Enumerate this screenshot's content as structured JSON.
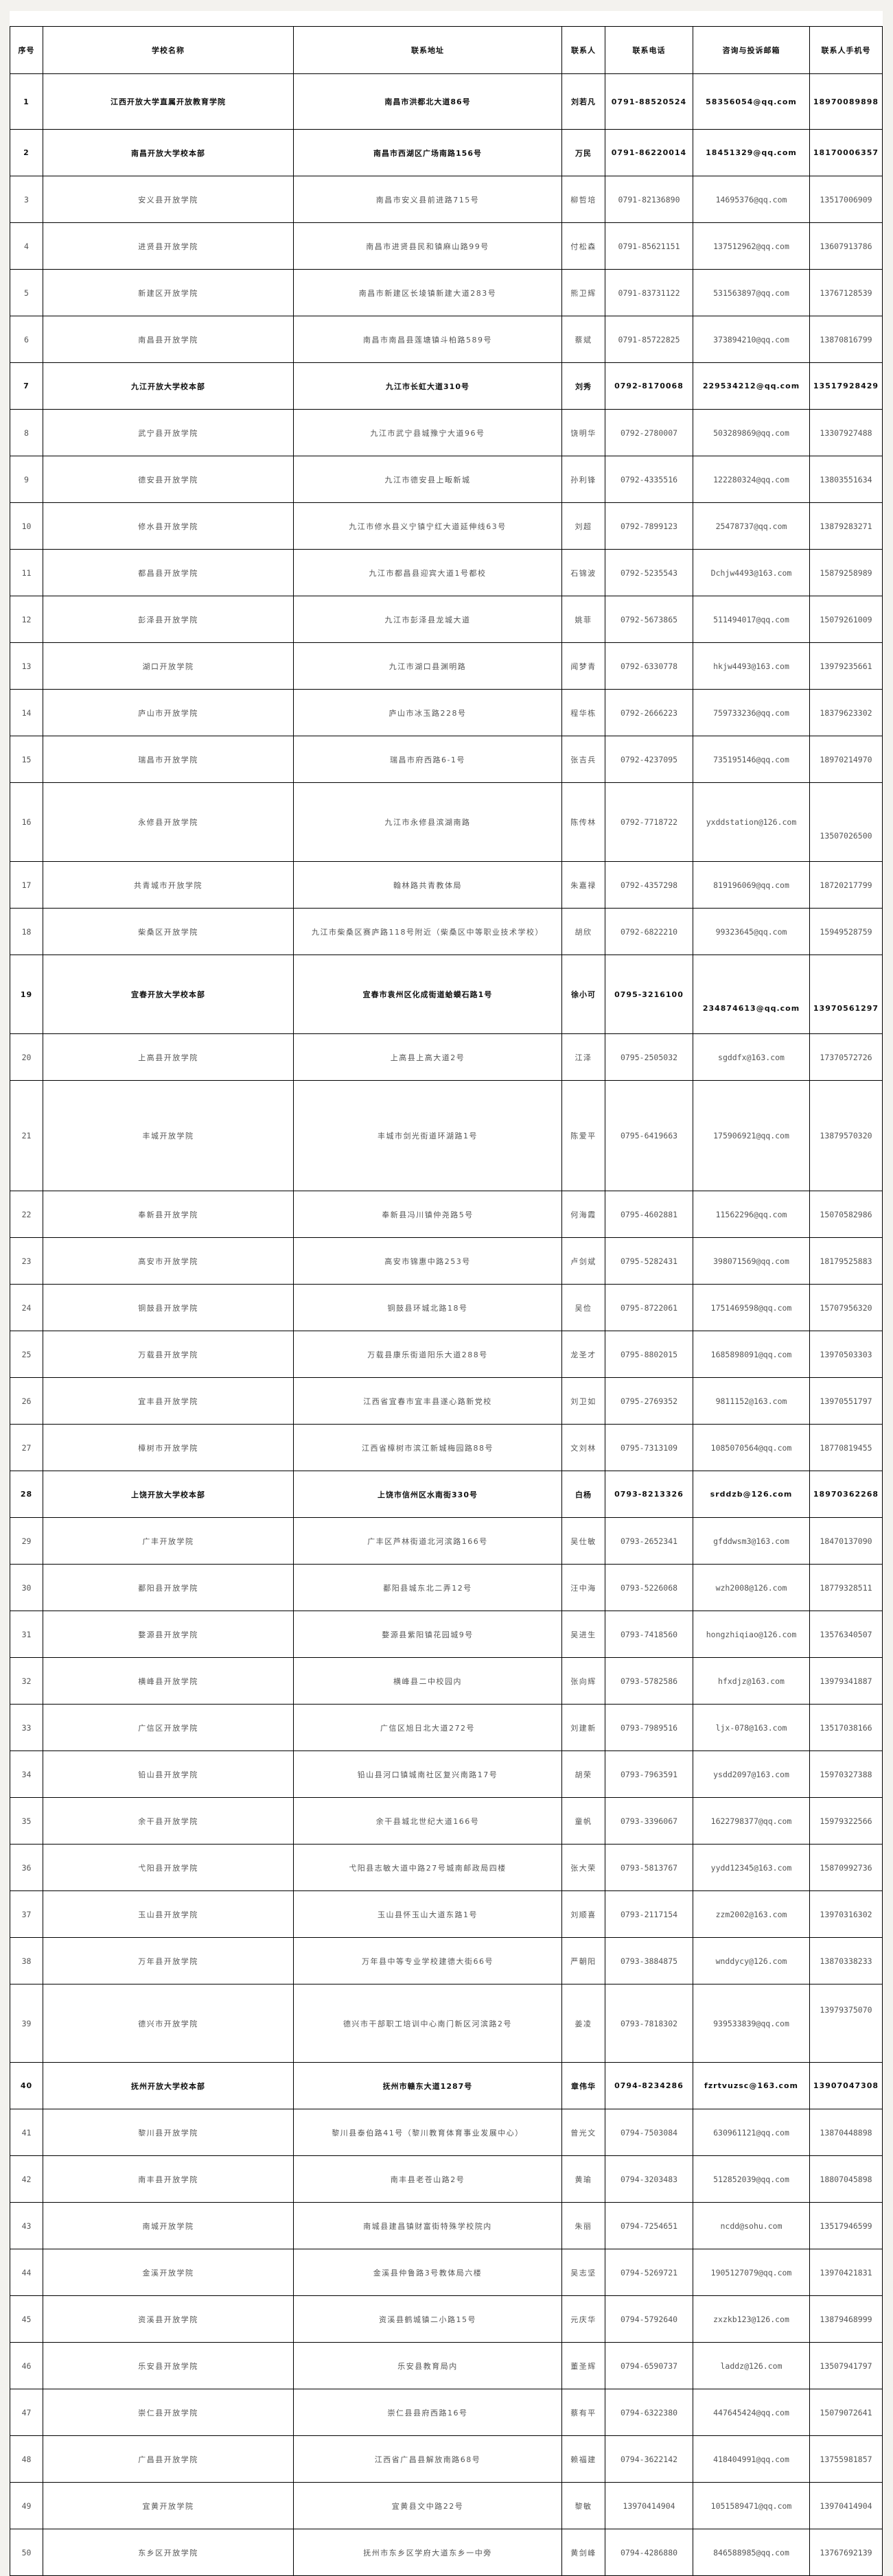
{
  "table": {
    "headers": [
      "序号",
      "学校名称",
      "联系地址",
      "联系人",
      "联系电话",
      "咨询与投诉邮箱",
      "联系人手机号"
    ],
    "rows": [
      {
        "no": "1",
        "school": "江西开放大学直属开放教育学院",
        "address": "南昌市洪都北大道86号",
        "contact": "刘若凡",
        "phone": "0791-88520524",
        "email": "58356054@qq.com",
        "mobile": "18970089898",
        "hq": true
      },
      {
        "no": "2",
        "school": "南昌开放大学校本部",
        "address": "南昌市西湖区广场南路156号",
        "contact": "万民",
        "phone": "0791-86220014",
        "email": "18451329@qq.com",
        "mobile": "18170006357",
        "hq": true
      },
      {
        "no": "3",
        "school": "安义县开放学院",
        "address": "南昌市安义县前进路715号",
        "contact": "柳哲培",
        "phone": "0791-82136890",
        "email": "14695376@qq.com",
        "mobile": "13517006909"
      },
      {
        "no": "4",
        "school": "进贤县开放学院",
        "address": "南昌市进贤县民和镇麻山路99号",
        "contact": "付松森",
        "phone": "0791-85621151",
        "email": "137512962@qq.com",
        "mobile": "13607913786"
      },
      {
        "no": "5",
        "school": "新建区开放学院",
        "address": "南昌市新建区长堎镇新建大道283号",
        "contact": "熊卫辉",
        "phone": "0791-83731122",
        "email": "531563897@qq.com",
        "mobile": "13767128539"
      },
      {
        "no": "6",
        "school": "南昌县开放学院",
        "address": "南昌市南昌县莲塘镇斗柏路589号",
        "contact": "蔡斌",
        "phone": "0791-85722825",
        "email": "373894210@qq.com",
        "mobile": "13870816799"
      },
      {
        "no": "7",
        "school": "九江开放大学校本部",
        "address": "九江市长虹大道310号",
        "contact": "刘秀",
        "phone": "0792-8170068",
        "email": "229534212@qq.com",
        "mobile": "13517928429",
        "hq": true
      },
      {
        "no": "8",
        "school": "武宁县开放学院",
        "address": "九江市武宁县城豫宁大道96号",
        "contact": "饶明华",
        "phone": "0792-2780007",
        "email": "503289869@qq.com",
        "mobile": "13307927488"
      },
      {
        "no": "9",
        "school": "德安县开放学院",
        "address": "九江市德安县上畈新城",
        "contact": "孙利锋",
        "phone": "0792-4335516",
        "email": "122280324@qq.com",
        "mobile": "13803551634"
      },
      {
        "no": "10",
        "school": "修水县开放学院",
        "address": "九江市修水县义宁镇宁红大道延伸线63号",
        "contact": "刘超",
        "phone": "0792-7899123",
        "email": "25478737@qq.com",
        "mobile": "13879283271"
      },
      {
        "no": "11",
        "school": "都昌县开放学院",
        "address": "九江市都昌县迎宾大道1号都校",
        "contact": "石锦波",
        "phone": "0792-5235543",
        "email": "Dchjw4493@163.com",
        "mobile": "15879258989"
      },
      {
        "no": "12",
        "school": "彭泽县开放学院",
        "address": "九江市彭泽县龙城大道",
        "contact": "姚菲",
        "phone": "0792-5673865",
        "email": "511494017@qq.com",
        "mobile": "15079261009"
      },
      {
        "no": "13",
        "school": "湖口开放学院",
        "address": "九江市湖口县渊明路",
        "contact": "闻梦青",
        "phone": "0792-6330778",
        "email": "hkjw4493@163.com",
        "mobile": "13979235661"
      },
      {
        "no": "14",
        "school": "庐山市开放学院",
        "address": "庐山市冰玉路228号",
        "contact": "程华栋",
        "phone": "0792-2666223",
        "email": "759733236@qq.com",
        "mobile": "18379623302"
      },
      {
        "no": "15",
        "school": "瑞昌市开放学院",
        "address": "瑞昌市府西路6-1号",
        "contact": "张吉兵",
        "phone": "0792-4237095",
        "email": "735195146@qq.com",
        "mobile": "18970214970"
      },
      {
        "no": "16",
        "school": "永修县开放学院",
        "address": "九江市永修县滨湖南路",
        "contact": "陈传林",
        "phone": "0792-7718722",
        "email": "yxddstation@126.com",
        "mobile": "13507026500"
      },
      {
        "no": "17",
        "school": "共青城市开放学院",
        "address": "翰林路共青教体局",
        "contact": "朱嘉禄",
        "phone": "0792-4357298",
        "email": "819196069@qq.com",
        "mobile": "18720217799"
      },
      {
        "no": "18",
        "school": "柴桑区开放学院",
        "address": "九江市柴桑区赛庐路118号附近（柴桑区中等职业技术学校）",
        "contact": "胡欣",
        "phone": "0792-6822210",
        "email": "99323645@qq.com",
        "mobile": "15949528759"
      },
      {
        "no": "19",
        "school": "宜春开放大学校本部",
        "address": "宜春市袁州区化成街道蛤蟆石路1号",
        "contact": "徐小可",
        "phone": "0795-3216100",
        "email": "234874613@qq.com",
        "mobile": "13970561297",
        "hq": true
      },
      {
        "no": "20",
        "school": "上高县开放学院",
        "address": "上高县上高大道2号",
        "contact": "江泽",
        "phone": "0795-2505032",
        "email": "sgddfx@163.com",
        "mobile": "17370572726"
      },
      {
        "no": "21",
        "school": "丰城开放学院",
        "address": "丰城市剑光街道环湖路1号",
        "contact": "陈爱平",
        "phone": "0795-6419663",
        "email": "175906921@qq.com",
        "mobile": "13879570320"
      },
      {
        "no": "22",
        "school": "奉新县开放学院",
        "address": "奉新县冯川镇仲尧路5号",
        "contact": "何海霞",
        "phone": "0795-4602881",
        "email": "11562296@qq.com",
        "mobile": "15070582986"
      },
      {
        "no": "23",
        "school": "高安市开放学院",
        "address": "高安市锦惠中路253号",
        "contact": "卢剑斌",
        "phone": "0795-5282431",
        "email": "398071569@qq.com",
        "mobile": "18179525883"
      },
      {
        "no": "24",
        "school": "铜鼓县开放学院",
        "address": "铜鼓县环城北路18号",
        "contact": "吴俭",
        "phone": "0795-8722061",
        "email": "1751469598@qq.com",
        "mobile": "15707956320"
      },
      {
        "no": "25",
        "school": "万载县开放学院",
        "address": "万载县康乐街道阳乐大道288号",
        "contact": "龙圣才",
        "phone": "0795-8802015",
        "email": "1685898091@qq.com",
        "mobile": "13970503303"
      },
      {
        "no": "26",
        "school": "宜丰县开放学院",
        "address": "江西省宜春市宜丰县遂心路新党校",
        "contact": "刘卫如",
        "phone": "0795-2769352",
        "email": "9811152@163.com",
        "mobile": "13970551797"
      },
      {
        "no": "27",
        "school": "樟树市开放学院",
        "address": "江西省樟树市滨江新城梅园路88号",
        "contact": "文刘林",
        "phone": "0795-7313109",
        "email": "1085070564@qq.com",
        "mobile": "18770819455"
      },
      {
        "no": "28",
        "school": "上饶开放大学校本部",
        "address": "上饶市信州区水南街330号",
        "contact": "白杨",
        "phone": "0793-8213326",
        "email": "srddzb@126.com",
        "mobile": "18970362268",
        "hq": true
      },
      {
        "no": "29",
        "school": "广丰开放学院",
        "address": "广丰区芦林街道北河滨路166号",
        "contact": "吴仕敏",
        "phone": "0793-2652341",
        "email": "gfddwsm3@163.com",
        "mobile": "18470137090"
      },
      {
        "no": "30",
        "school": "鄱阳县开放学院",
        "address": "鄱阳县城东北二弄12号",
        "contact": "汪中海",
        "phone": "0793-5226068",
        "email": "wzh2008@126.com",
        "mobile": "18779328511"
      },
      {
        "no": "31",
        "school": "婺源县开放学院",
        "address": "婺源县紫阳镇花园城9号",
        "contact": "吴进生",
        "phone": "0793-7418560",
        "email": "hongzhiqiao@126.com",
        "mobile": "13576340507"
      },
      {
        "no": "32",
        "school": "横峰县开放学院",
        "address": "横峰县二中校园内",
        "contact": "张向辉",
        "phone": "0793-5782586",
        "email": "hfxdjz@163.com",
        "mobile": "13979341887"
      },
      {
        "no": "33",
        "school": "广信区开放学院",
        "address": "广信区旭日北大道272号",
        "contact": "刘建新",
        "phone": "0793-7989516",
        "email": "ljx-078@163.com",
        "mobile": "13517038166"
      },
      {
        "no": "34",
        "school": "铅山县开放学院",
        "address": "铅山县河口镇城南社区复兴南路17号",
        "contact": "胡荣",
        "phone": "0793-7963591",
        "email": "ysdd2097@163.com",
        "mobile": "15970327388"
      },
      {
        "no": "35",
        "school": "余干县开放学院",
        "address": "余干县城北世纪大道166号",
        "contact": "童帆",
        "phone": "0793-3396067",
        "email": "1622798377@qq.com",
        "mobile": "15979322566"
      },
      {
        "no": "36",
        "school": "弋阳县开放学院",
        "address": "弋阳县志敏大道中路27号城南邮政局四楼",
        "contact": "张大荣",
        "phone": "0793-5813767",
        "email": "yydd12345@163.com",
        "mobile": "15870992736"
      },
      {
        "no": "37",
        "school": "玉山县开放学院",
        "address": "玉山县怀玉山大道东路1号",
        "contact": "刘顺喜",
        "phone": "0793-2117154",
        "email": "zzm2002@163.com",
        "mobile": "13970316302"
      },
      {
        "no": "38",
        "school": "万年县开放学院",
        "address": "万年县中等专业学校建德大街66号",
        "contact": "严朝阳",
        "phone": "0793-3884875",
        "email": "wnddycy@126.com",
        "mobile": "13870338233"
      },
      {
        "no": "39",
        "school": "德兴市开放学院",
        "address": "德兴市干部职工培训中心南门新区河滨路2号",
        "contact": "姜凌",
        "phone": "0793-7818302",
        "email": "939533839@qq.com",
        "mobile": "13979375070"
      },
      {
        "no": "40",
        "school": "抚州开放大学校本部",
        "address": "抚州市赣东大道1287号",
        "contact": "章伟华",
        "phone": "0794-8234286",
        "email": "fzrtvuzsc@163.com",
        "mobile": "13907047308",
        "hq": true
      },
      {
        "no": "41",
        "school": "黎川县开放学院",
        "address": "黎川县泰伯路41号（黎川教育体育事业发展中心）",
        "contact": "曾光文",
        "phone": "0794-7503084",
        "email": "630961121@qq.com",
        "mobile": "13870448898"
      },
      {
        "no": "42",
        "school": "南丰县开放学院",
        "address": "南丰县老苍山路2号",
        "contact": "黄瑜",
        "phone": "0794-3203483",
        "email": "512852039@qq.com",
        "mobile": "18807045898"
      },
      {
        "no": "43",
        "school": "南城开放学院",
        "address": "南城县建昌镇财富街特殊学校院内",
        "contact": "朱丽",
        "phone": "0794-7254651",
        "email": "ncdd@sohu.com",
        "mobile": "13517946599"
      },
      {
        "no": "44",
        "school": "金溪开放学院",
        "address": "金溪县仲鲁路3号教体局六楼",
        "contact": "吴志坚",
        "phone": "0794-5269721",
        "email": "1905127079@qq.com",
        "mobile": "13970421831"
      },
      {
        "no": "45",
        "school": "资溪县开放学院",
        "address": "资溪县鹤城镇二小路15号",
        "contact": "元庆华",
        "phone": "0794-5792640",
        "email": "zxzkb123@126.com",
        "mobile": "13879468999"
      },
      {
        "no": "46",
        "school": "乐安县开放学院",
        "address": "乐安县教育局内",
        "contact": "董圣辉",
        "phone": "0794-6590737",
        "email": "laddz@126.com",
        "mobile": "13507941797"
      },
      {
        "no": "47",
        "school": "崇仁县开放学院",
        "address": "崇仁县县府西路16号",
        "contact": "蔡有平",
        "phone": "0794-6322380",
        "email": "447645424@qq.com",
        "mobile": "15079072641"
      },
      {
        "no": "48",
        "school": "广昌县开放学院",
        "address": "江西省广昌县解放南路68号",
        "contact": "赖福建",
        "phone": "0794-3622142",
        "email": "418404991@qq.com",
        "mobile": "13755981857"
      },
      {
        "no": "49",
        "school": "宜黄开放学院",
        "address": "宜黄县文中路22号",
        "contact": "黎敏",
        "phone": "13970414904",
        "email": "1051589471@qq.com",
        "mobile": "13970414904"
      },
      {
        "no": "50",
        "school": "东乡区开放学院",
        "address": "抚州市东乡区学府大道东乡一中旁",
        "contact": "黄剑峰",
        "phone": "0794-4286880",
        "email": "846588985@qq.com",
        "mobile": "13767692139"
      }
    ]
  }
}
